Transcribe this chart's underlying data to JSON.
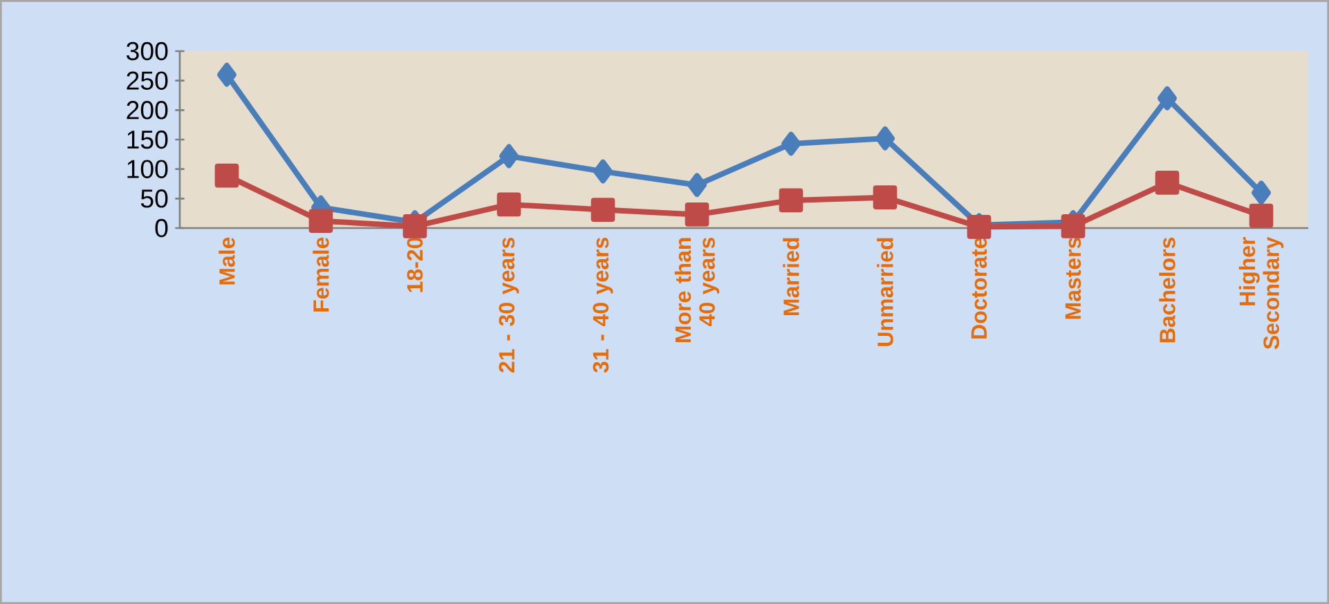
{
  "chart_data": {
    "type": "line",
    "categories": [
      "Male",
      "Female",
      "18-20",
      "21 - 30 years",
      "31 - 40 years",
      "More than 40 years",
      "Married",
      "Unmarried",
      "Doctorate",
      "Masters",
      "Bachelors",
      "Higher Secondary"
    ],
    "series": [
      {
        "color": "#4a7ebb",
        "marker": "diamond",
        "values": [
          260,
          35,
          10,
          122,
          96,
          73,
          143,
          152,
          5,
          10,
          220,
          60
        ]
      },
      {
        "color": "#be4b48",
        "marker": "square",
        "values": [
          89,
          12,
          3,
          40,
          31,
          23,
          47,
          52,
          2,
          3,
          77,
          21
        ]
      }
    ],
    "ylim": [
      0,
      300
    ],
    "yticks": [
      0,
      50,
      100,
      150,
      200,
      250,
      300
    ],
    "line_style": "solid"
  }
}
